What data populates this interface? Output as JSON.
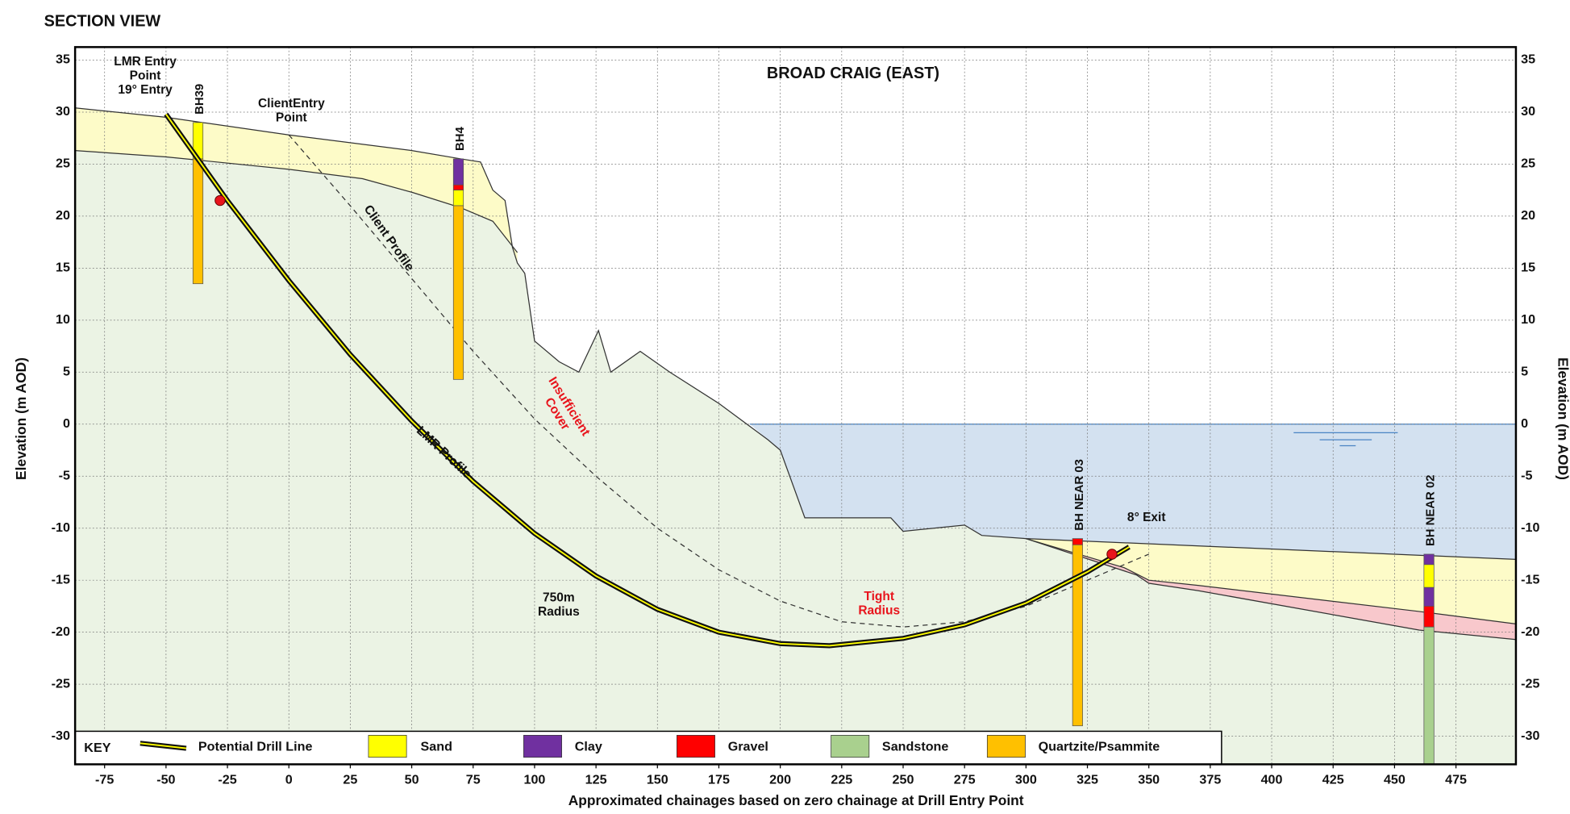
{
  "page_title": "SECTION VIEW",
  "chart_data": {
    "type": "section",
    "title": "BROAD CRAIG (EAST)",
    "x_label": "Approximated chainages based on zero chainage at Drill Entry Point",
    "y_label": "Elevation (m AOD)",
    "y2_label": "Elevation (m AOD)",
    "xlim": [
      -87,
      499.4
    ],
    "ylim": [
      -32.7,
      36.25
    ],
    "xticks": [
      -75,
      -50,
      -25,
      0,
      25,
      50,
      75,
      100,
      125,
      150,
      175,
      200,
      225,
      250,
      275,
      300,
      325,
      350,
      375,
      400,
      425,
      450,
      475
    ],
    "yticks": [
      -30,
      -25,
      -20,
      -15,
      -10,
      -5,
      0,
      5,
      10,
      15,
      20,
      25,
      30,
      35
    ],
    "grid": true,
    "ground": {
      "x": [
        -87,
        -50,
        0,
        50,
        70,
        78,
        83,
        88,
        91,
        93,
        96,
        100,
        110,
        118,
        126,
        131,
        143,
        155,
        175,
        195,
        200,
        210,
        245,
        250,
        275,
        282,
        300,
        499.4
      ],
      "y": [
        30.4,
        29.5,
        27.8,
        26.3,
        25.5,
        25.2,
        22.5,
        21.5,
        17,
        15.5,
        14.5,
        8,
        6,
        5,
        9,
        5,
        7,
        5,
        2,
        -1.5,
        -2.5,
        -9,
        -9,
        -10.3,
        -9.7,
        -10.7,
        -11,
        -13
      ]
    },
    "rockhead": {
      "x": [
        -87,
        -50,
        0,
        30,
        50,
        70,
        83,
        93
      ],
      "y": [
        26.3,
        25.7,
        24.5,
        23.6,
        22.3,
        20.8,
        19.5,
        16.5
      ]
    },
    "sea_level": 0,
    "gravel_top": {
      "x": [
        300,
        340,
        350,
        370,
        460,
        499.4
      ],
      "y": [
        -11,
        -13.8,
        -15,
        -15.5,
        -18,
        -19.2
      ]
    },
    "gravel_base": {
      "x": [
        300,
        345,
        350,
        370,
        460,
        499.4
      ],
      "y": [
        -11,
        -14.5,
        -15.3,
        -16,
        -19.8,
        -20.7
      ]
    },
    "drill": {
      "x": [
        -50,
        -25,
        0,
        25,
        50,
        75,
        100,
        125,
        150,
        175,
        200,
        220,
        250,
        275,
        300,
        325,
        342
      ],
      "y": [
        29.8,
        21.5,
        13.8,
        6.7,
        0.3,
        -5.5,
        -10.5,
        -14.6,
        -17.8,
        -20,
        -21.1,
        -21.3,
        -20.6,
        -19.3,
        -17.2,
        -14.2,
        -11.8
      ]
    },
    "client": {
      "x": [
        0,
        25,
        50,
        75,
        100,
        125,
        150,
        175,
        200,
        225,
        250,
        275,
        300,
        325,
        350
      ],
      "y": [
        27.8,
        21,
        14,
        7,
        0.5,
        -5,
        -10,
        -14,
        -17,
        -19,
        -19.5,
        -19,
        -17.5,
        -15,
        -12.5
      ]
    },
    "points": {
      "x": [
        -28,
        335
      ],
      "y": [
        21.5,
        -12.5
      ],
      "color": "#e8141c"
    },
    "boreholes": [
      {
        "label": "BH39",
        "x": -37,
        "layers": [
          {
            "top": 29,
            "bottom": 25.5,
            "color": "#ffff00"
          },
          {
            "top": 25.5,
            "bottom": 13.5,
            "color": "#ffc000"
          }
        ]
      },
      {
        "label": "BH4",
        "x": 69,
        "layers": [
          {
            "top": 25.5,
            "bottom": 23,
            "color": "#7030a0"
          },
          {
            "top": 23,
            "bottom": 22.5,
            "color": "#ff0000"
          },
          {
            "top": 22.5,
            "bottom": 21,
            "color": "#ffff00"
          },
          {
            "top": 21,
            "bottom": 4.3,
            "color": "#ffc000"
          }
        ]
      },
      {
        "label": "BH NEAR 03",
        "x": 321,
        "layers": [
          {
            "top": -11,
            "bottom": -11.6,
            "color": "#ff0000"
          },
          {
            "top": -11.6,
            "bottom": -29,
            "color": "#ffc000"
          }
        ]
      },
      {
        "label": "BH NEAR 02",
        "x": 464,
        "layers": [
          {
            "top": -12.5,
            "bottom": -13.5,
            "color": "#7030a0"
          },
          {
            "top": -13.5,
            "bottom": -15.7,
            "color": "#ffff00"
          },
          {
            "top": -15.7,
            "bottom": -17.5,
            "color": "#7030a0"
          },
          {
            "top": -17.5,
            "bottom": -19.5,
            "color": "#ff0000"
          },
          {
            "top": -19.5,
            "bottom": -32.7,
            "color": "#a9d08e"
          }
        ]
      }
    ],
    "annotations": [
      {
        "lines": [
          "LMR Entry",
          "Point",
          "19° Entry"
        ]
      },
      {
        "lines": [
          "ClientEntry",
          "Point"
        ]
      },
      {
        "lines": [
          "Client Profile"
        ]
      },
      {
        "lines": [
          "Insufficient",
          "Cover"
        ],
        "color": "#e8141c"
      },
      {
        "lines": [
          "LMR Profile"
        ]
      },
      {
        "lines": [
          "8° Exit"
        ]
      },
      {
        "lines": [
          "750m",
          "Radius"
        ]
      },
      {
        "lines": [
          "Tight",
          "Radius"
        ],
        "color": "#e8141c"
      }
    ],
    "legend_title": "KEY",
    "legend": [
      {
        "label": "Potential Drill Line"
      },
      {
        "label": "Sand",
        "color": "#ffff00"
      },
      {
        "label": "Clay",
        "color": "#7030a0"
      },
      {
        "label": "Gravel",
        "color": "#ff0000"
      },
      {
        "label": "Sandstone",
        "color": "#a9d08e"
      },
      {
        "label": "Quartzite/Psammite",
        "color": "#ffc000"
      }
    ]
  }
}
